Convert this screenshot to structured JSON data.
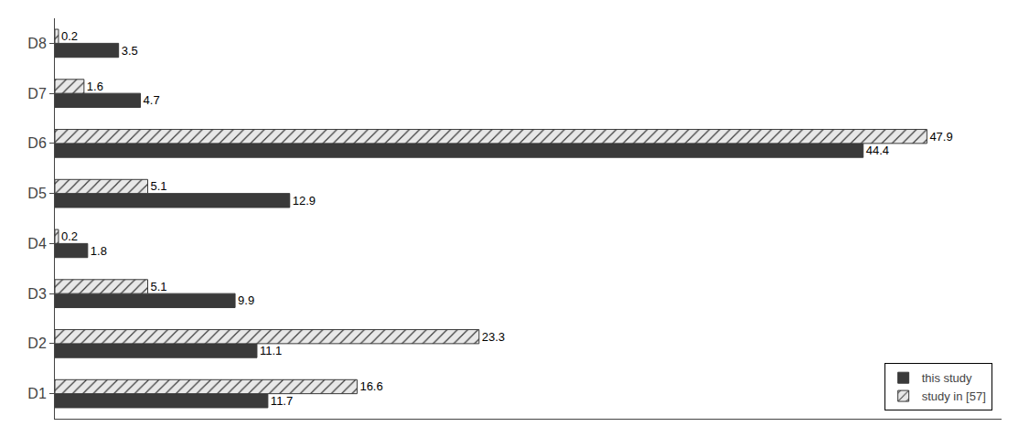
{
  "chart_data": {
    "type": "bar",
    "orientation": "horizontal",
    "categories": [
      "D1",
      "D2",
      "D3",
      "D4",
      "D5",
      "D6",
      "D7",
      "D8"
    ],
    "series": [
      {
        "name": "this study",
        "color": "#3a3a3a",
        "values": [
          11.7,
          11.1,
          9.9,
          1.8,
          12.9,
          44.4,
          4.7,
          3.5
        ]
      },
      {
        "name": "study in [57]",
        "color": "#e8e8e8",
        "values": [
          16.6,
          23.3,
          5.1,
          0.2,
          5.1,
          47.9,
          1.6,
          0.2
        ]
      }
    ],
    "xlim": [
      0,
      52
    ],
    "data_labels": true,
    "tick_labels": "y",
    "legend": "lower right"
  }
}
